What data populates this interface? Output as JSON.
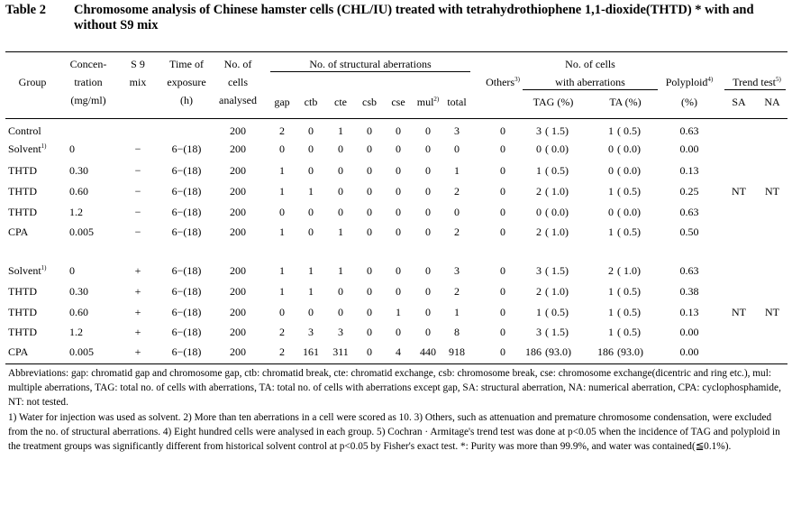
{
  "title": {
    "table_no": "Table 2",
    "text": "Chromosome analysis of Chinese hamster cells (CHL/IU) treated with tetrahydrothiophene 1,1-dioxide(THTD) * with and without S9 mix"
  },
  "headers": {
    "group": "Group",
    "conc": [
      "Concen-",
      "tration",
      "(mg/ml)"
    ],
    "s9": [
      "S 9",
      "mix"
    ],
    "time": [
      "Time of",
      "exposure",
      "(h)"
    ],
    "cells": [
      "No. of",
      "cells",
      "analysed"
    ],
    "struct_title": "No. of structural aberrations",
    "struct_cols": [
      "gap",
      "ctb",
      "cte",
      "csb",
      "cse",
      "mul",
      "total"
    ],
    "mul_note": "2)",
    "others": "Others",
    "others_note": "3)",
    "with_title": [
      "No. of cells",
      "with aberrations"
    ],
    "tag": "TAG (%)",
    "ta": "TA (%)",
    "polyploid": "Polyploid",
    "polyploid_note": "4)",
    "poly_unit": "(%)",
    "trend": "Trend test",
    "trend_note": "5)",
    "trend_sa": "SA",
    "trend_na": "NA"
  },
  "rows": [
    {
      "group": "Control",
      "note": "",
      "conc": "",
      "s9": "",
      "time": "",
      "cells": "200",
      "gap": "2",
      "ctb": "0",
      "cte": "1",
      "csb": "0",
      "cse": "0",
      "mul": "0",
      "total": "3",
      "others": "0",
      "tag_n": "3",
      "tag_p": "( 1.5)",
      "ta_n": "1",
      "ta_p": "( 0.5)",
      "poly": "0.63",
      "sa": "",
      "na": ""
    },
    {
      "group": "Solvent",
      "note": "1)",
      "conc": "0",
      "s9": "−",
      "time": "6−(18)",
      "cells": "200",
      "gap": "0",
      "ctb": "0",
      "cte": "0",
      "csb": "0",
      "cse": "0",
      "mul": "0",
      "total": "0",
      "others": "0",
      "tag_n": "0",
      "tag_p": "( 0.0)",
      "ta_n": "0",
      "ta_p": "( 0.0)",
      "poly": "0.00",
      "sa": "",
      "na": ""
    },
    {
      "group": "THTD",
      "note": "",
      "conc": "0.30",
      "s9": "−",
      "time": "6−(18)",
      "cells": "200",
      "gap": "1",
      "ctb": "0",
      "cte": "0",
      "csb": "0",
      "cse": "0",
      "mul": "0",
      "total": "1",
      "others": "0",
      "tag_n": "1",
      "tag_p": "( 0.5)",
      "ta_n": "0",
      "ta_p": "( 0.0)",
      "poly": "0.13",
      "sa": "",
      "na": ""
    },
    {
      "group": "THTD",
      "note": "",
      "conc": "0.60",
      "s9": "−",
      "time": "6−(18)",
      "cells": "200",
      "gap": "1",
      "ctb": "1",
      "cte": "0",
      "csb": "0",
      "cse": "0",
      "mul": "0",
      "total": "2",
      "others": "0",
      "tag_n": "2",
      "tag_p": "( 1.0)",
      "ta_n": "1",
      "ta_p": "( 0.5)",
      "poly": "0.25",
      "sa": "NT",
      "na": "NT"
    },
    {
      "group": "THTD",
      "note": "",
      "conc": "1.2",
      "s9": "−",
      "time": "6−(18)",
      "cells": "200",
      "gap": "0",
      "ctb": "0",
      "cte": "0",
      "csb": "0",
      "cse": "0",
      "mul": "0",
      "total": "0",
      "others": "0",
      "tag_n": "0",
      "tag_p": "( 0.0)",
      "ta_n": "0",
      "ta_p": "( 0.0)",
      "poly": "0.63",
      "sa": "",
      "na": ""
    },
    {
      "group": "CPA",
      "note": "",
      "conc": "0.005",
      "s9": "−",
      "time": "6−(18)",
      "cells": "200",
      "gap": "1",
      "ctb": "0",
      "cte": "1",
      "csb": "0",
      "cse": "0",
      "mul": "0",
      "total": "2",
      "others": "0",
      "tag_n": "2",
      "tag_p": "( 1.0)",
      "ta_n": "1",
      "ta_p": "( 0.5)",
      "poly": "0.50",
      "sa": "",
      "na": ""
    },
    {
      "group": "Solvent",
      "note": "1)",
      "conc": "0",
      "s9": "+",
      "time": "6−(18)",
      "cells": "200",
      "gap": "1",
      "ctb": "1",
      "cte": "1",
      "csb": "0",
      "cse": "0",
      "mul": "0",
      "total": "3",
      "others": "0",
      "tag_n": "3",
      "tag_p": "( 1.5)",
      "ta_n": "2",
      "ta_p": "( 1.0)",
      "poly": "0.63",
      "sa": "",
      "na": ""
    },
    {
      "group": "THTD",
      "note": "",
      "conc": "0.30",
      "s9": "+",
      "time": "6−(18)",
      "cells": "200",
      "gap": "1",
      "ctb": "1",
      "cte": "0",
      "csb": "0",
      "cse": "0",
      "mul": "0",
      "total": "2",
      "others": "0",
      "tag_n": "2",
      "tag_p": "( 1.0)",
      "ta_n": "1",
      "ta_p": "( 0.5)",
      "poly": "0.38",
      "sa": "",
      "na": ""
    },
    {
      "group": "THTD",
      "note": "",
      "conc": "0.60",
      "s9": "+",
      "time": "6−(18)",
      "cells": "200",
      "gap": "0",
      "ctb": "0",
      "cte": "0",
      "csb": "0",
      "cse": "1",
      "mul": "0",
      "total": "1",
      "others": "0",
      "tag_n": "1",
      "tag_p": "( 0.5)",
      "ta_n": "1",
      "ta_p": "( 0.5)",
      "poly": "0.13",
      "sa": "NT",
      "na": "NT"
    },
    {
      "group": "THTD",
      "note": "",
      "conc": "1.2",
      "s9": "+",
      "time": "6−(18)",
      "cells": "200",
      "gap": "2",
      "ctb": "3",
      "cte": "3",
      "csb": "0",
      "cse": "0",
      "mul": "0",
      "total": "8",
      "others": "0",
      "tag_n": "3",
      "tag_p": "( 1.5)",
      "ta_n": "1",
      "ta_p": "( 0.5)",
      "poly": "0.00",
      "sa": "",
      "na": ""
    },
    {
      "group": "CPA",
      "note": "",
      "conc": "0.005",
      "s9": "+",
      "time": "6−(18)",
      "cells": "200",
      "gap": "2",
      "ctb": "161",
      "cte": "311",
      "csb": "0",
      "cse": "4",
      "mul": "440",
      "total": "918",
      "others": "0",
      "tag_n": "186",
      "tag_p": "(93.0)",
      "ta_n": "186",
      "ta_p": "(93.0)",
      "poly": "0.00",
      "sa": "",
      "na": ""
    }
  ],
  "notes": [
    "Abbreviations: gap: chromatid gap and chromosome gap, ctb: chromatid break, cte: chromatid exchange, csb: chromosome break, cse: chromosome exchange(dicentric and ring etc.), mul: multiple aberrations, TAG: total no. of cells with aberrations, TA: total no. of cells with aberrations except gap, SA: structural aberration, NA: numerical aberration, CPA: cyclophosphamide, NT: not tested.",
    "1) Water for injection was used as solvent.   2) More than ten aberrations in a cell were scored as 10.   3) Others, such as attenuation and premature chromosome condensation, were excluded from the no. of structural aberrations.   4) Eight hundred cells were analysed in each group.   5) Cochran · Armitage's trend test was done at p<0.05 when the incidence of TAG and polyploid in the treatment groups was significantly different from historical solvent control at p<0.05 by Fisher's exact test.   *: Purity was more than 99.9%, and water was contained(≦0.1%)."
  ]
}
